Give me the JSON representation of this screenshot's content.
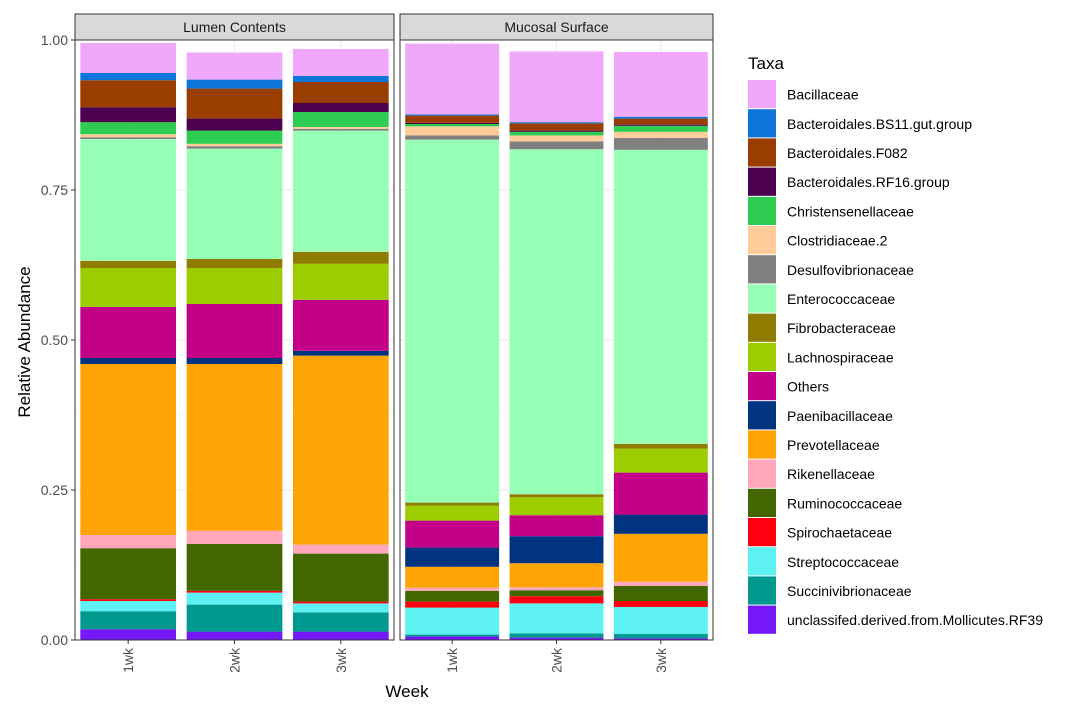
{
  "chart_data": {
    "type": "bar",
    "stacked": true,
    "ylabel": "Relative Abundance",
    "xlabel": "Week",
    "ylim": [
      0,
      1
    ],
    "yticks": [
      {
        "value": 0,
        "label": "0.00"
      },
      {
        "value": 0.25,
        "label": "0.25"
      },
      {
        "value": 0.5,
        "label": "0.50"
      },
      {
        "value": 0.75,
        "label": "0.75"
      },
      {
        "value": 1,
        "label": "1.00"
      }
    ],
    "categories": [
      "1wk",
      "2wk",
      "3wk"
    ],
    "legend_title": "Taxa",
    "legend_position": "right",
    "taxa": [
      {
        "name": "Bacillaceae",
        "color": "#F0A8FB"
      },
      {
        "name": "Bacteroidales.BS11.gut.group",
        "color": "#0D74D9"
      },
      {
        "name": "Bacteroidales.F082",
        "color": "#9A3E00"
      },
      {
        "name": "Bacteroidales.RF16.group",
        "color": "#4B0050"
      },
      {
        "name": "Christensenellaceae",
        "color": "#2ECC50"
      },
      {
        "name": "Clostridiaceae.2",
        "color": "#FFCC9A"
      },
      {
        "name": "Desulfovibrionaceae",
        "color": "#808080"
      },
      {
        "name": "Enterococcaceae",
        "color": "#96FFB5"
      },
      {
        "name": "Fibrobacteraceae",
        "color": "#8F7C00"
      },
      {
        "name": "Lachnospiraceae",
        "color": "#9DCC00"
      },
      {
        "name": "Others",
        "color": "#C20088"
      },
      {
        "name": "Paenibacillaceae",
        "color": "#003380"
      },
      {
        "name": "Prevotellaceae",
        "color": "#FFA405"
      },
      {
        "name": "Rikenellaceae",
        "color": "#FFA8BB"
      },
      {
        "name": "Ruminococcaceae",
        "color": "#426600"
      },
      {
        "name": "Spirochaetaceae",
        "color": "#FF0010"
      },
      {
        "name": "Streptococcaceae",
        "color": "#5EF1F2"
      },
      {
        "name": "Succinivibrionaceae",
        "color": "#00998F"
      },
      {
        "name": "unclassifed.derived.from.Mollicutes.RF39",
        "color": "#7418F7"
      }
    ],
    "panels": [
      {
        "title": "Lumen Contents",
        "series": {
          "Bacillaceae": [
            0.05,
            0.045,
            0.045
          ],
          "Bacteroidales.BS11.gut.group": [
            0.012,
            0.015,
            0.01
          ],
          "Bacteroidales.F082": [
            0.045,
            0.05,
            0.035
          ],
          "Bacteroidales.RF16.group": [
            0.025,
            0.02,
            0.015
          ],
          "Christensenellaceae": [
            0.02,
            0.022,
            0.025
          ],
          "Clostridiaceae.2": [
            0.005,
            0.004,
            0.003
          ],
          "Desulfovibrionaceae": [
            0.003,
            0.004,
            0.003
          ],
          "Enterococcaceae": [
            0.203,
            0.184,
            0.202
          ],
          "Fibrobacteraceae": [
            0.012,
            0.015,
            0.02
          ],
          "Lachnospiraceae": [
            0.065,
            0.06,
            0.06
          ],
          "Others": [
            0.085,
            0.09,
            0.085
          ],
          "Paenibacillaceae": [
            0.01,
            0.01,
            0.008
          ],
          "Prevotellaceae": [
            0.285,
            0.278,
            0.315
          ],
          "Rikenellaceae": [
            0.022,
            0.022,
            0.015
          ],
          "Ruminococcaceae": [
            0.085,
            0.078,
            0.08
          ],
          "Spirochaetaceae": [
            0.003,
            0.003,
            0.003
          ],
          "Streptococcaceae": [
            0.017,
            0.02,
            0.015
          ],
          "Succinivibrionaceae": [
            0.03,
            0.045,
            0.032
          ],
          "unclassifed.derived.from.Mollicutes.RF39": [
            0.018,
            0.014,
            0.014
          ]
        }
      },
      {
        "title": "Mucosal Surface",
        "series": {
          "Bacillaceae": [
            0.118,
            0.118,
            0.108
          ],
          "Bacteroidales.BS11.gut.group": [
            0.002,
            0.002,
            0.003
          ],
          "Bacteroidales.F082": [
            0.012,
            0.012,
            0.01
          ],
          "Bacteroidales.RF16.group": [
            0.002,
            0.002,
            0.002
          ],
          "Christensenellaceae": [
            0.004,
            0.006,
            0.01
          ],
          "Clostridiaceae.2": [
            0.015,
            0.01,
            0.01
          ],
          "Desulfovibrionaceae": [
            0.007,
            0.013,
            0.02
          ],
          "Enterococcaceae": [
            0.605,
            0.575,
            0.49
          ],
          "Fibrobacteraceae": [
            0.005,
            0.005,
            0.008
          ],
          "Lachnospiraceae": [
            0.025,
            0.03,
            0.04
          ],
          "Others": [
            0.045,
            0.035,
            0.07
          ],
          "Paenibacillaceae": [
            0.032,
            0.045,
            0.032
          ],
          "Prevotellaceae": [
            0.035,
            0.04,
            0.08
          ],
          "Rikenellaceae": [
            0.005,
            0.005,
            0.007
          ],
          "Ruminococcaceae": [
            0.018,
            0.01,
            0.025
          ],
          "Spirochaetaceae": [
            0.01,
            0.012,
            0.01
          ],
          "Streptococcaceae": [
            0.045,
            0.05,
            0.045
          ],
          "Succinivibrionaceae": [
            0.003,
            0.007,
            0.007
          ],
          "unclassifed.derived.from.Mollicutes.RF39": [
            0.006,
            0.004,
            0.003
          ]
        }
      }
    ]
  }
}
